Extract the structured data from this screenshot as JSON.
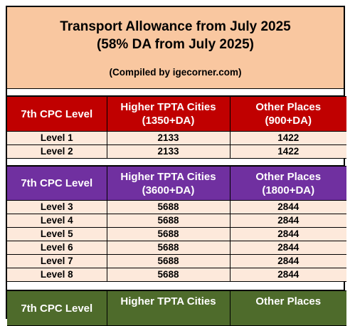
{
  "header": {
    "title": "Transport Allowance from July 2025",
    "subtitle": "(58% DA from July 2025)",
    "compiled": "(Compiled by igecorner.com)"
  },
  "tables": [
    {
      "col1": "7th CPC Level",
      "col2_line1": "Higher TPTA Cities",
      "col2_line2": "(1350+DA)",
      "col3_line1": "Other Places",
      "col3_line2": "(900+DA)",
      "rows": [
        {
          "level": "Level 1",
          "higher": "2133",
          "other": "1422"
        },
        {
          "level": "Level 2",
          "higher": "2133",
          "other": "1422"
        }
      ]
    },
    {
      "col1": "7th CPC Level",
      "col2_line1": "Higher TPTA Cities",
      "col2_line2": "(3600+DA)",
      "col3_line1": "Other Places",
      "col3_line2": "(1800+DA)",
      "rows": [
        {
          "level": "Level 3",
          "higher": "5688",
          "other": "2844"
        },
        {
          "level": "Level 4",
          "higher": "5688",
          "other": "2844"
        },
        {
          "level": "Level 5",
          "higher": "5688",
          "other": "2844"
        },
        {
          "level": "Level 6",
          "higher": "5688",
          "other": "2844"
        },
        {
          "level": "Level 7",
          "higher": "5688",
          "other": "2844"
        },
        {
          "level": "Level 8",
          "higher": "5688",
          "other": "2844"
        }
      ]
    },
    {
      "col1": "7th CPC Level",
      "col2_line1": "Higher TPTA Cities",
      "col3_line1": "Other Places"
    }
  ],
  "colors": {
    "header_bg": "#f9c7a0",
    "red_header": "#c00000",
    "purple_header": "#7030a0",
    "green_header": "#4e6b2b",
    "row_bg": "#fde9db"
  }
}
